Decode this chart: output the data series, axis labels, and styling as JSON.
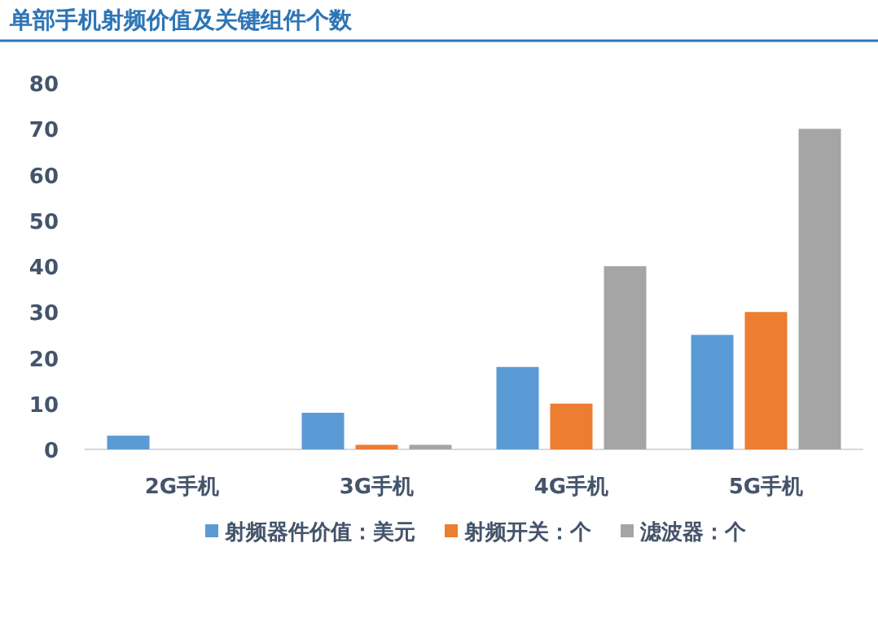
{
  "chart_data": {
    "type": "bar",
    "title": "单部手机射频价值及关键组件个数",
    "categories": [
      "2G手机",
      "3G手机",
      "4G手机",
      "5G手机"
    ],
    "series": [
      {
        "name": "射频器件价值：美元",
        "color": "#5b9bd5",
        "values": [
          3,
          8,
          18,
          25
        ]
      },
      {
        "name": "射频开关：个",
        "color": "#ed7d31",
        "values": [
          null,
          1,
          10,
          30
        ]
      },
      {
        "name": "滤波器：个",
        "color": "#a5a5a5",
        "values": [
          null,
          1,
          40,
          70
        ]
      }
    ],
    "ylim": [
      0,
      80
    ],
    "yticks": [
      0,
      10,
      20,
      30,
      40,
      50,
      60,
      70,
      80
    ],
    "grid": false,
    "legend": "bottom"
  }
}
